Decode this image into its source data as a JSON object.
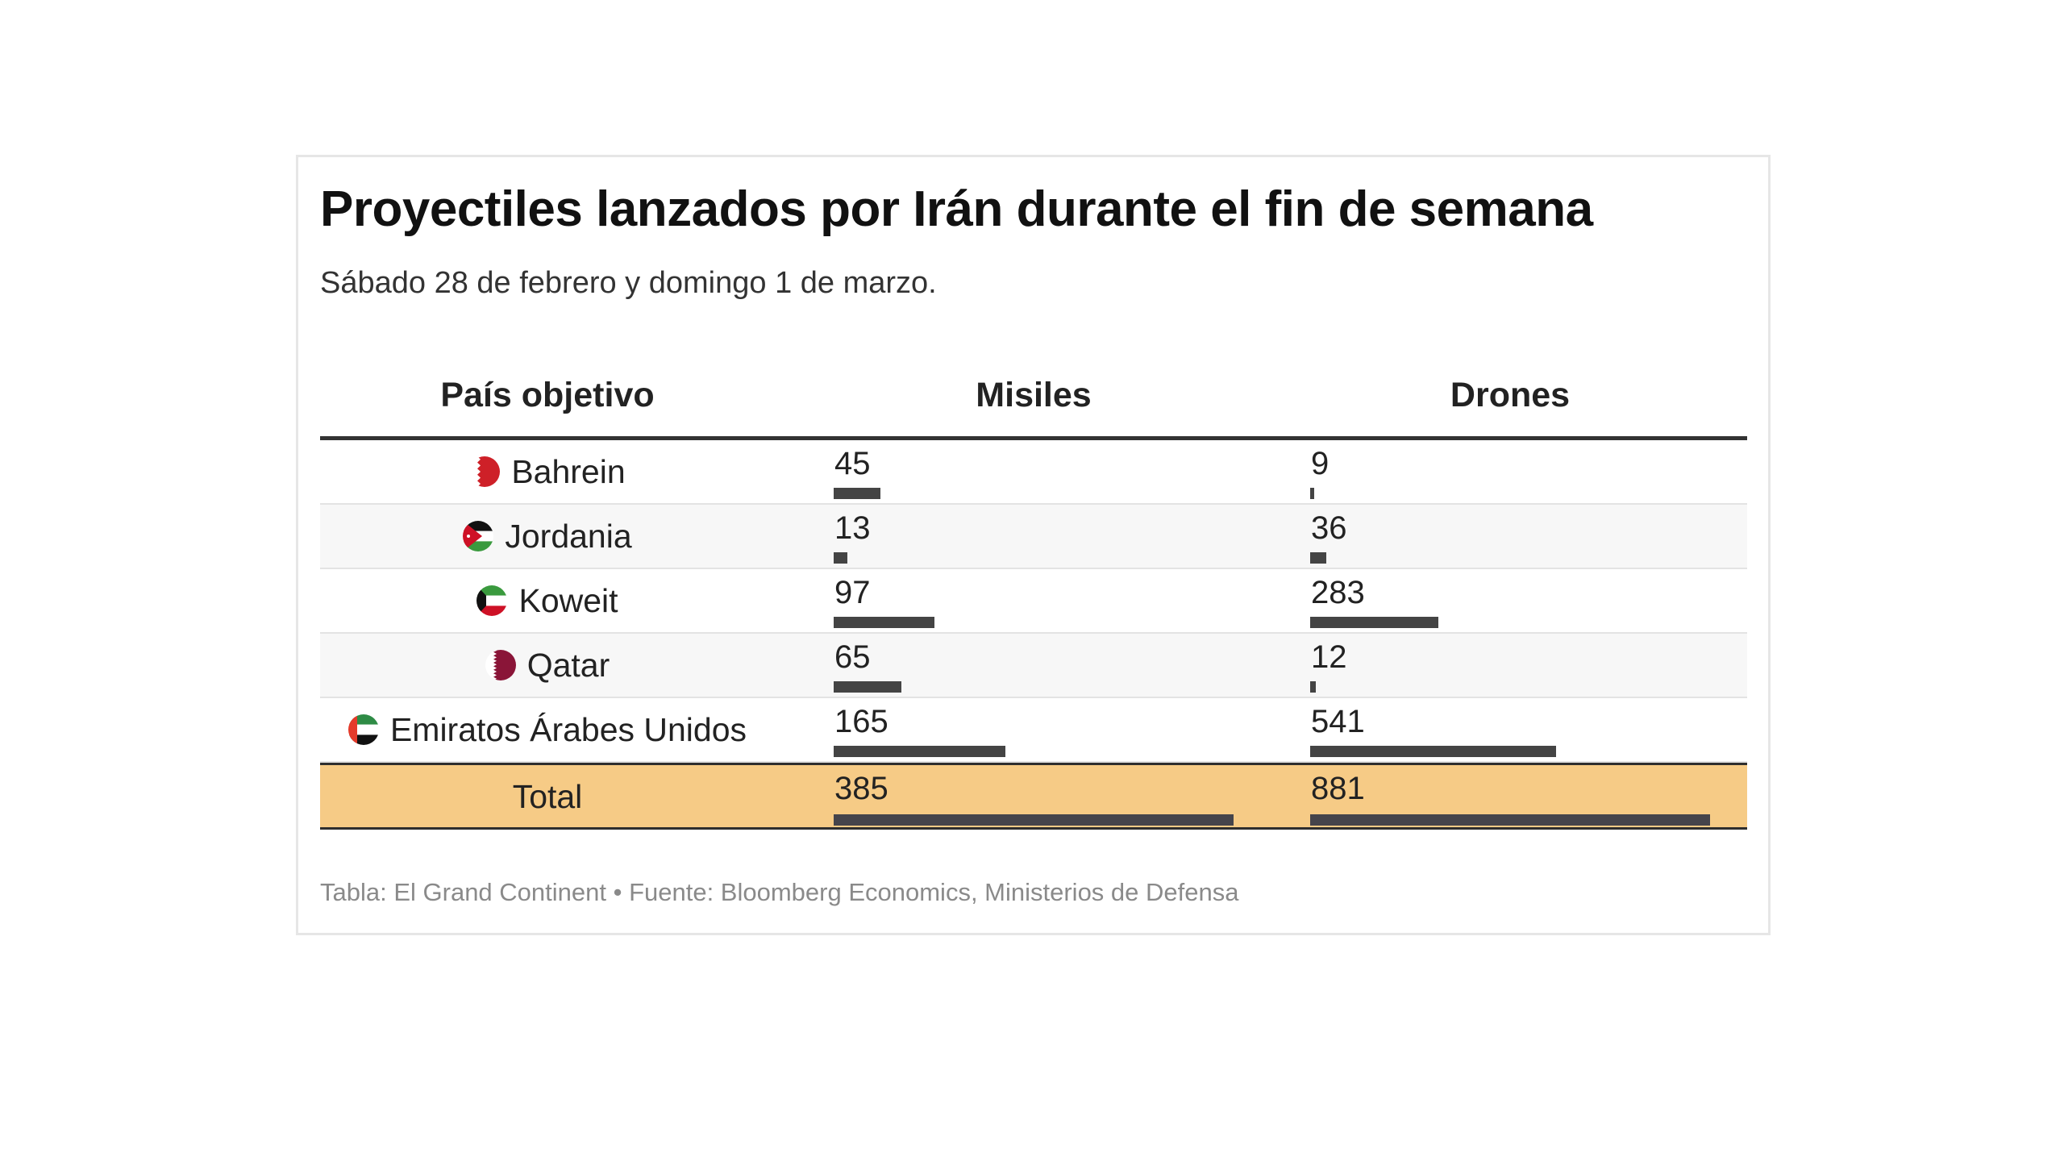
{
  "title": "Proyectiles lanzados por Irán durante el fin de semana",
  "subtitle": "Sábado 28 de febrero y domingo 1 de marzo.",
  "table": {
    "headers": [
      "País objetivo",
      "Misiles",
      "Drones"
    ],
    "rows": [
      {
        "country": "Bahrein",
        "flag": "bahrain-flag-icon",
        "misiles": 45,
        "drones": 9
      },
      {
        "country": "Jordania",
        "flag": "jordan-flag-icon",
        "misiles": 13,
        "drones": 36
      },
      {
        "country": "Koweit",
        "flag": "kuwait-flag-icon",
        "misiles": 97,
        "drones": 283
      },
      {
        "country": "Qatar",
        "flag": "qatar-flag-icon",
        "misiles": 65,
        "drones": 12
      },
      {
        "country": "Emiratos Árabes Unidos",
        "flag": "uae-flag-icon",
        "misiles": 165,
        "drones": 541
      }
    ],
    "total": {
      "label": "Total",
      "misiles": 385,
      "drones": 881
    }
  },
  "footer": "Tabla: El Grand Continent • Fuente: Bloomberg Economics, Ministerios de Defensa",
  "colors": {
    "bar": "#444444",
    "total_background": "#f6cb86",
    "alt_row": "#f7f7f7"
  },
  "chart_data": {
    "type": "table",
    "title": "Proyectiles lanzados por Irán durante el fin de semana",
    "subtitle": "Sábado 28 de febrero y domingo 1 de marzo.",
    "columns": [
      "País objetivo",
      "Misiles",
      "Drones"
    ],
    "categories": [
      "Bahrein",
      "Jordania",
      "Koweit",
      "Qatar",
      "Emiratos Árabes Unidos"
    ],
    "series": [
      {
        "name": "Misiles",
        "values": [
          45,
          13,
          97,
          65,
          165
        ],
        "total": 385
      },
      {
        "name": "Drones",
        "values": [
          9,
          36,
          283,
          12,
          541
        ],
        "total": 881
      }
    ],
    "bar_scale": "each column scaled to its own total (total = full bar)",
    "source": "Tabla: El Grand Continent • Fuente: Bloomberg Economics, Ministerios de Defensa"
  }
}
